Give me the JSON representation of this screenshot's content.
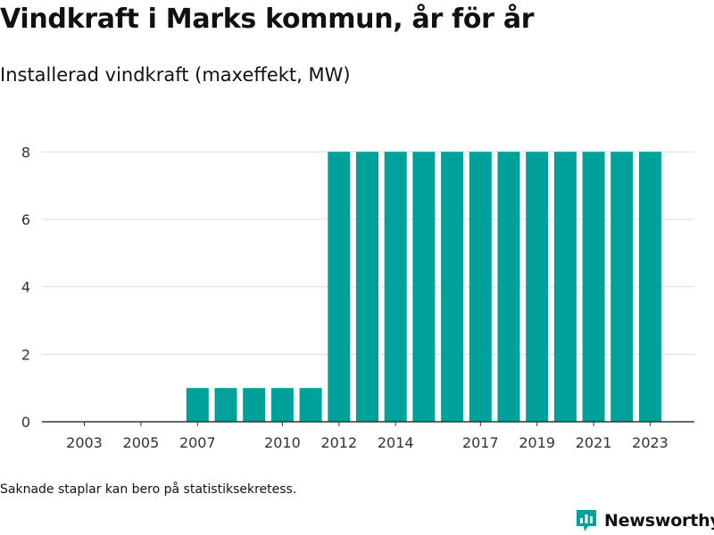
{
  "chart_data": {
    "type": "bar",
    "title": "Vindkraft i Marks kommun, år för år",
    "subtitle": "Installerad vindkraft (maxeffekt, MW)",
    "categories": [
      "2003",
      "2004",
      "2005",
      "2006",
      "2007",
      "2008",
      "2009",
      "2010",
      "2011",
      "2012",
      "2013",
      "2014",
      "2015",
      "2016",
      "2017",
      "2018",
      "2019",
      "2020",
      "2021",
      "2022",
      "2023"
    ],
    "values": [
      0,
      0,
      0,
      0,
      1,
      1,
      1,
      1,
      1,
      8,
      8,
      8,
      8,
      8,
      8,
      8,
      8,
      8,
      8,
      8,
      8
    ],
    "x_tick_labels": [
      "2003",
      "2005",
      "2007",
      "2010",
      "2012",
      "2014",
      "2017",
      "2019",
      "2021",
      "2023"
    ],
    "y_ticks": [
      0,
      2,
      4,
      6,
      8
    ],
    "ylim": [
      0,
      8.8
    ],
    "grid": true,
    "bar_color": "#00a19a"
  },
  "footnote": "Saknade staplar kan bero på statistiksekretess.",
  "brand": {
    "name": "Newsworthy",
    "color": "#00a19a",
    "icon": "bar-chart-speech-bubble-icon"
  }
}
